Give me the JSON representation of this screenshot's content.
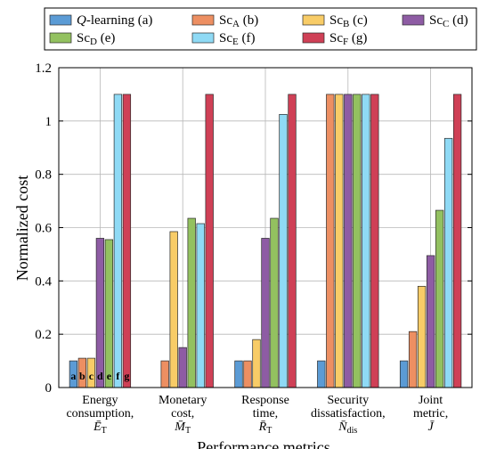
{
  "chart_data": {
    "type": "bar",
    "ylabel": "Normalized cost",
    "xlabel": "Performance metrics",
    "ylim": [
      0,
      1.2
    ],
    "yticks": [
      "0",
      "0.2",
      "0.4",
      "0.6",
      "0.8",
      "1",
      "1.2"
    ],
    "grid": true,
    "legend_position": "top",
    "categories": [
      [
        "Energy",
        "consumption,",
        "Ē_T"
      ],
      [
        "Monetary",
        "cost,",
        "M̄_T"
      ],
      [
        "Response",
        "time,",
        "R̄_T"
      ],
      [
        "Security",
        "dissatisfaction,",
        "N̄_dis"
      ],
      [
        "Joint",
        "metric,",
        "J̄"
      ]
    ],
    "bar_letters": [
      "a",
      "b",
      "c",
      "d",
      "e",
      "f",
      "g"
    ],
    "series": [
      {
        "name": "Q-learning (a)",
        "color": "#5b9bd5",
        "values": [
          0.1,
          0.0,
          0.1,
          0.1,
          0.1
        ]
      },
      {
        "name": "Sc_A (b)",
        "color": "#ed8f62",
        "values": [
          0.11,
          0.1,
          0.1,
          1.1,
          0.21
        ]
      },
      {
        "name": "Sc_B (c)",
        "color": "#f8cc67",
        "values": [
          0.11,
          0.585,
          0.18,
          1.1,
          0.38
        ]
      },
      {
        "name": "Sc_C (d)",
        "color": "#8e5ca4",
        "values": [
          0.56,
          0.15,
          0.56,
          1.1,
          0.495
        ]
      },
      {
        "name": "Sc_D (e)",
        "color": "#93c160",
        "values": [
          0.555,
          0.635,
          0.635,
          1.1,
          0.665
        ]
      },
      {
        "name": "Sc_E (f)",
        "color": "#8fdaf5",
        "values": [
          1.1,
          0.615,
          1.025,
          1.1,
          0.935
        ]
      },
      {
        "name": "Sc_F (g)",
        "color": "#cf4056",
        "values": [
          1.1,
          1.1,
          1.1,
          1.1,
          1.1
        ]
      }
    ]
  }
}
